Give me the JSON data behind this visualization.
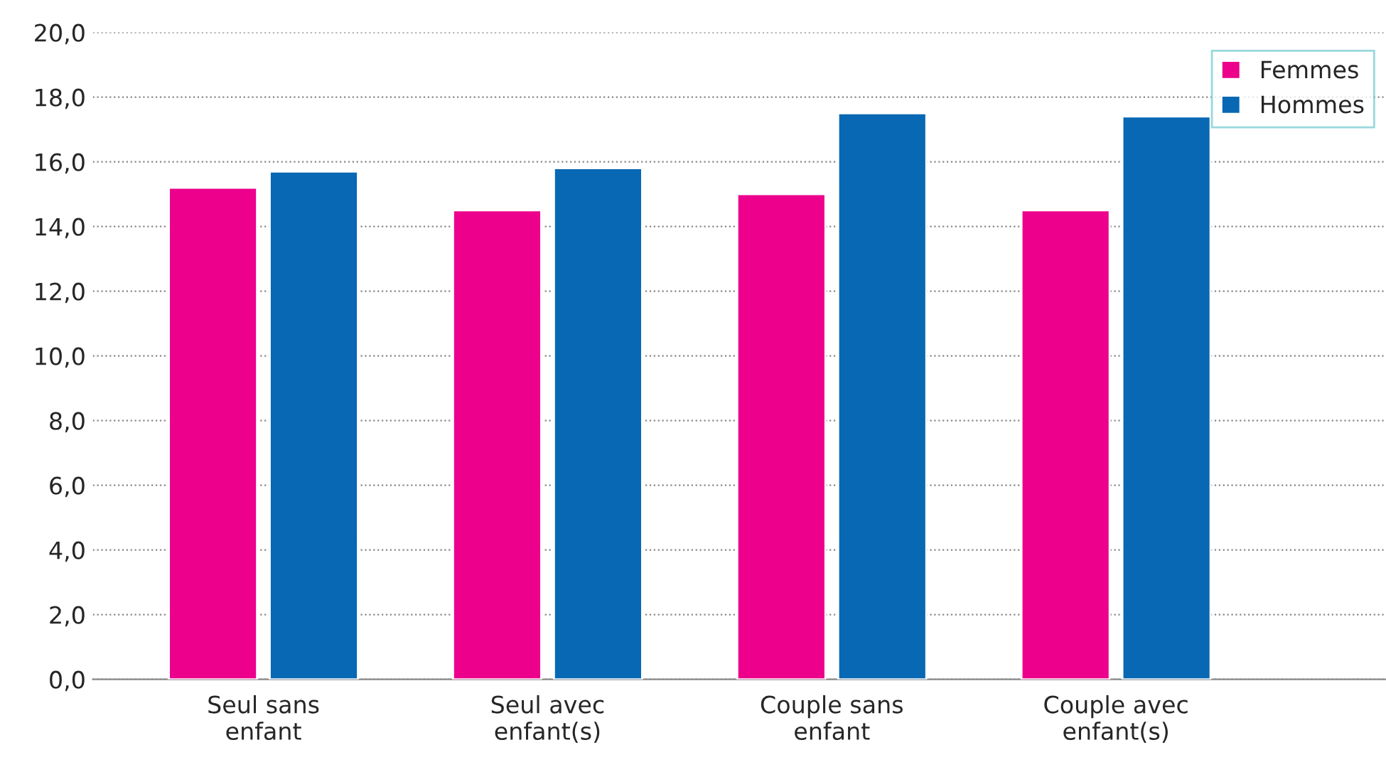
{
  "chart_data": {
    "type": "bar",
    "categories": [
      "Seul sans enfant",
      "Seul avec enfant(s)",
      "Couple sans enfant",
      "Couple avec enfant(s)"
    ],
    "series": [
      {
        "name": "Femmes",
        "color": "#ec008c",
        "values": [
          15.2,
          14.5,
          15.0,
          14.5
        ]
      },
      {
        "name": "Hommes",
        "color": "#0868b3",
        "values": [
          15.7,
          15.8,
          17.5,
          17.4
        ]
      }
    ],
    "ylim": [
      0,
      20
    ],
    "yticks": [
      {
        "value": 0,
        "label": "0,0"
      },
      {
        "value": 2,
        "label": "2,0"
      },
      {
        "value": 4,
        "label": "4,0"
      },
      {
        "value": 6,
        "label": "6,0"
      },
      {
        "value": 8,
        "label": "8,0"
      },
      {
        "value": 10,
        "label": "10,0"
      },
      {
        "value": 12,
        "label": "12,0"
      },
      {
        "value": 14,
        "label": "14,0"
      },
      {
        "value": 16,
        "label": "16,0"
      },
      {
        "value": 18,
        "label": "18,0"
      },
      {
        "value": 20,
        "label": "20,0"
      }
    ],
    "grid": "y",
    "legend": "top right"
  }
}
